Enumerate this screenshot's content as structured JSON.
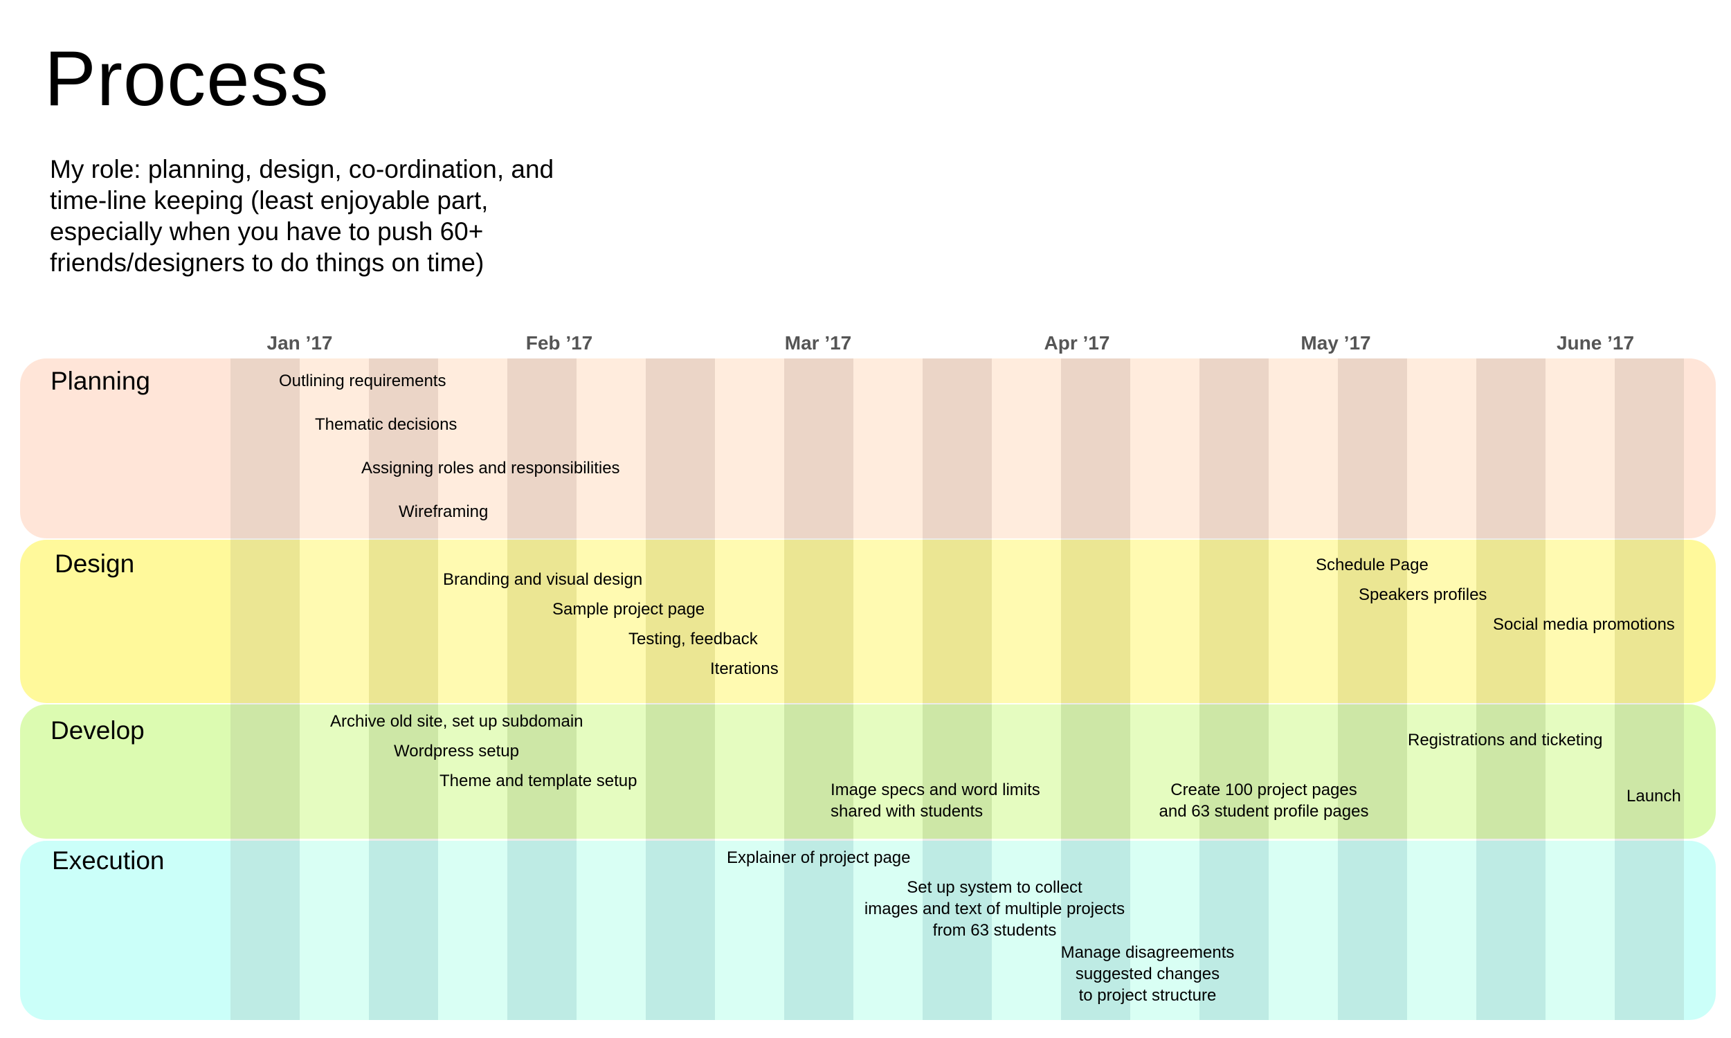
{
  "title": "Process",
  "intro": "My role: planning, design, co-ordination, and time-line keeping (least enjoyable part, especially when you have to push 60+ friends/designers to do things on time)",
  "months": [
    "Jan ’17",
    "Feb ’17",
    "Mar ’17",
    "Apr ’17",
    "May ’17",
    "June ’17"
  ],
  "phases": {
    "planning": {
      "label": "Planning",
      "color": "#ffe5d8",
      "tasks": [
        "Outlining requirements",
        "Thematic decisions",
        "Assigning roles and responsibilities",
        "Wireframing"
      ]
    },
    "design": {
      "label": "Design",
      "color": "#fff99b",
      "tasks": [
        "Branding and visual design",
        "Sample project page",
        "Testing, feedback",
        "Iterations",
        "Schedule Page",
        "Speakers profiles",
        "Social media promotions"
      ]
    },
    "develop": {
      "label": "Develop",
      "color": "#dcfbb1",
      "tasks": [
        "Archive old site, set up subdomain",
        "Wordpress setup",
        "Theme and template setup",
        "Image specs and word limits\nshared with students",
        "Create 100 project pages\nand 63 student profile pages",
        "Registrations and ticketing",
        "Launch"
      ]
    },
    "execution": {
      "label": "Execution",
      "color": "#cbfff9",
      "tasks": [
        "Explainer of project page",
        "Set up system to collect\nimages and text of multiple projects\nfrom 63 students",
        "Manage disagreements\nsuggested changes\nto project structure"
      ]
    }
  }
}
